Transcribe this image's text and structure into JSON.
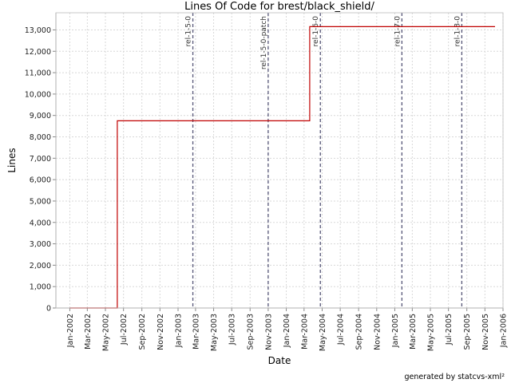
{
  "chart_data": {
    "type": "line",
    "title": "Lines Of Code for brest/black_shield/",
    "xlabel": "Date",
    "ylabel": "Lines",
    "x_ticks": [
      "Jan-2002",
      "Mar-2002",
      "May-2002",
      "Jul-2002",
      "Sep-2002",
      "Nov-2002",
      "Jan-2003",
      "Mar-2003",
      "May-2003",
      "Jul-2003",
      "Sep-2003",
      "Nov-2003",
      "Jan-2004",
      "Mar-2004",
      "May-2004",
      "Jul-2004",
      "Sep-2004",
      "Nov-2004",
      "Jan-2005",
      "Mar-2005",
      "May-2005",
      "Jul-2005",
      "Sep-2005",
      "Nov-2005",
      "Jan-2006"
    ],
    "xlim": [
      "2001-11-15",
      "2006-01-01"
    ],
    "ylim": [
      0,
      13800
    ],
    "y_ticks": [
      0,
      1000,
      2000,
      3000,
      4000,
      5000,
      6000,
      7000,
      8000,
      9000,
      10000,
      11000,
      12000,
      13000
    ],
    "y_tick_labels": [
      "0",
      "1,000",
      "2,000",
      "3,000",
      "4,000",
      "5,000",
      "6,000",
      "7,000",
      "8,000",
      "9,000",
      "10,000",
      "11,000",
      "12,000",
      "13,000"
    ],
    "grid": true,
    "series": [
      {
        "color": "#c00000",
        "step": true,
        "points": [
          {
            "x": "2002-01-01",
            "y": 0
          },
          {
            "x": "2002-06-10",
            "y": 0
          },
          {
            "x": "2002-06-10",
            "y": 8750
          },
          {
            "x": "2004-03-20",
            "y": 8750
          },
          {
            "x": "2004-03-20",
            "y": 13150
          },
          {
            "x": "2005-12-05",
            "y": 13150
          }
        ]
      }
    ],
    "markers": [
      {
        "label": "rel-1-5-0",
        "x": "2003-02-20"
      },
      {
        "label": "rel-1-5-0-patch",
        "x": "2003-11-01"
      },
      {
        "label": "rel-1-6-0",
        "x": "2004-04-25"
      },
      {
        "label": "rel-1-7-0",
        "x": "2005-01-25"
      },
      {
        "label": "rel-1-8-0",
        "x": "2005-08-15"
      }
    ],
    "marker_color": "#555577"
  },
  "footer": "generated by statcvs-xml²"
}
